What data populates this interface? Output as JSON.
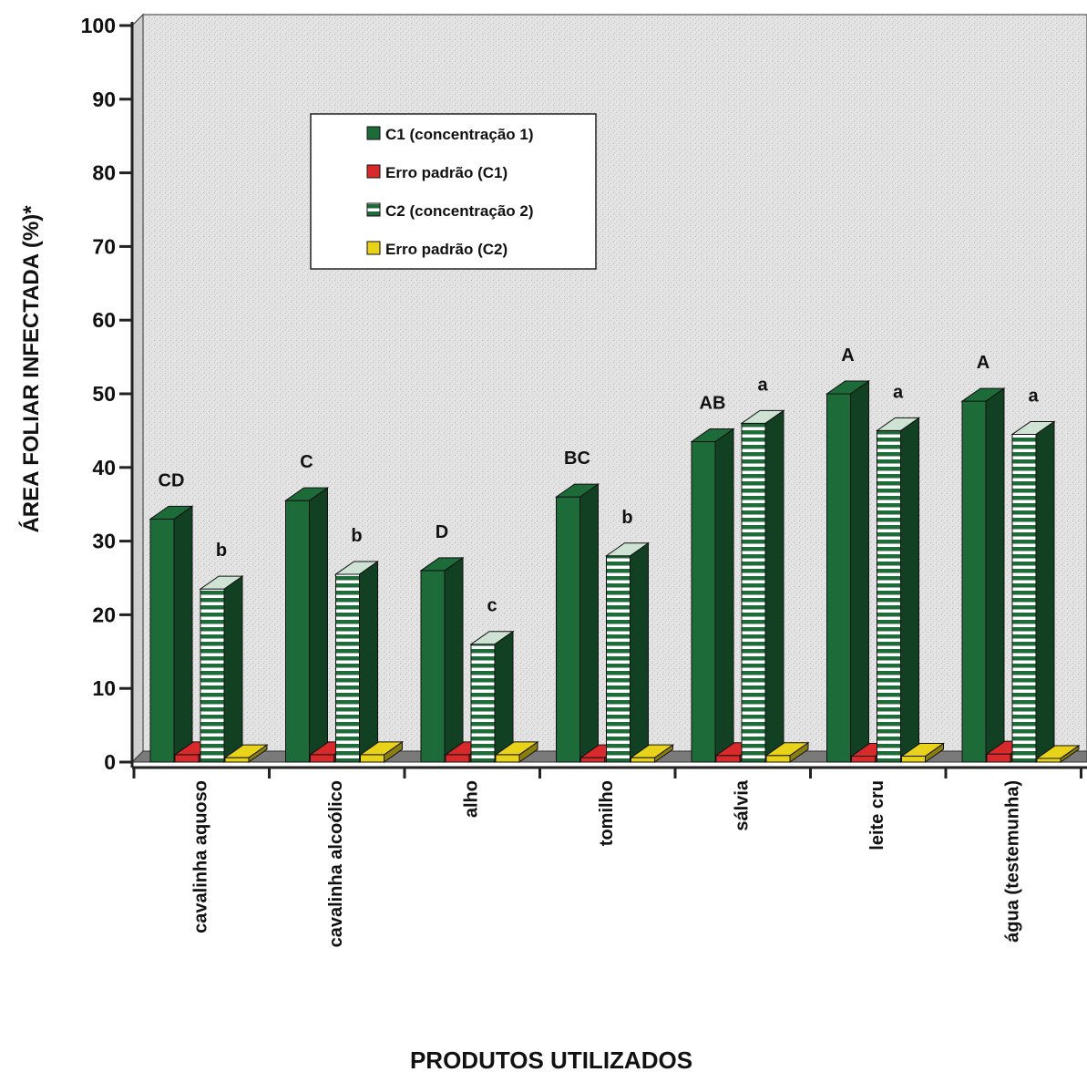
{
  "chart_data": {
    "type": "bar",
    "title": "",
    "xlabel": "PRODUTOS UTILIZADOS",
    "ylabel": "ÁREA FOLIAR INFECTADA (%)*",
    "ylim": [
      0,
      100
    ],
    "yticks": [
      "0",
      "10",
      "20",
      "30",
      "40",
      "50",
      "60",
      "70",
      "80",
      "90",
      "100"
    ],
    "categories": [
      "cavalinha  aquoso",
      "cavalinha  alcoólico",
      "alho",
      "tomilho",
      "sálvia",
      "leite cru",
      "água  (testemunha)"
    ],
    "series": [
      {
        "name": "C1 (concentração 1)",
        "values": [
          33,
          35.5,
          26,
          36,
          43.5,
          50,
          49
        ],
        "labels": [
          "CD",
          "C",
          "D",
          "BC",
          "AB",
          "A",
          "A"
        ],
        "color": "#1e6b3a"
      },
      {
        "name": "Erro padrão (C1)",
        "values": [
          1.0,
          1.0,
          1.0,
          0.6,
          0.9,
          0.8,
          1.1
        ],
        "color": "#d82a2a"
      },
      {
        "name": "C2 (concentração 2)",
        "values": [
          23.5,
          25.5,
          16,
          28,
          46,
          45,
          44.5
        ],
        "labels": [
          "b",
          "b",
          "c",
          "b",
          "a",
          "a",
          "a"
        ],
        "color": "#1e6b3a"
      },
      {
        "name": "Erro padrão (C2)",
        "values": [
          0.6,
          1.0,
          1.0,
          0.6,
          0.9,
          0.8,
          0.5
        ],
        "color": "#e8d21a"
      }
    ],
    "legend": "top-left, inside plot",
    "grid": false
  }
}
